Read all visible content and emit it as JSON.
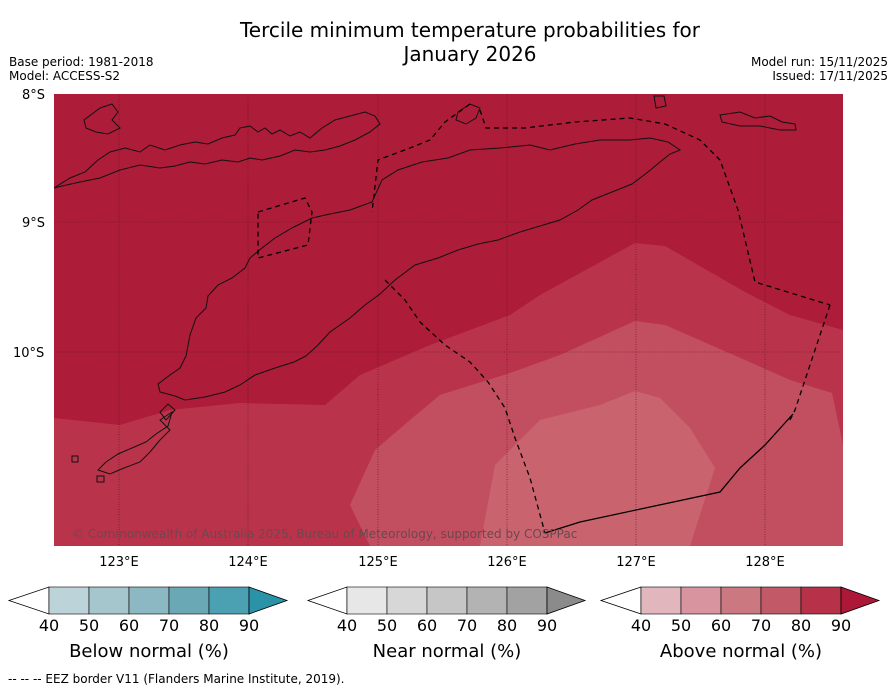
{
  "title_line1": "Tercile minimum temperature probabilities for",
  "title_line2": "January 2026",
  "base_period": "Base period: 1981-2018",
  "model": "Model: ACCESS-S2",
  "model_run": "Model run: 15/11/2025",
  "issued": "Issued: 17/11/2025",
  "map": {
    "lat_labels": [
      "8°S",
      "9°S",
      "10°S"
    ],
    "lon_labels": [
      "123°E",
      "124°E",
      "125°E",
      "126°E",
      "127°E",
      "128°E"
    ],
    "copyright": "© Commonwealth of Australia 2025, Bureau of Meteorology, supported by COSPPac"
  },
  "colorbars": [
    {
      "id": "below",
      "title": "Below normal (%)",
      "ticks": [
        "40",
        "50",
        "60",
        "70",
        "80",
        "90"
      ],
      "colors": [
        "#bdd3da",
        "#a5c6cc",
        "#8bb8c2",
        "#6aa8b6",
        "#4ba0b1",
        "#2a93a8"
      ]
    },
    {
      "id": "near",
      "title": "Near normal (%)",
      "ticks": [
        "40",
        "50",
        "60",
        "70",
        "80",
        "90"
      ],
      "colors": [
        "#e7e7e7",
        "#d7d7d7",
        "#c6c6c6",
        "#b3b3b3",
        "#a2a2a2",
        "#8b8b8b"
      ]
    },
    {
      "id": "above",
      "title": "Above normal (%)",
      "ticks": [
        "40",
        "50",
        "60",
        "70",
        "80",
        "90"
      ],
      "colors": [
        "#e2b6bd",
        "#d8959f",
        "#cc7880",
        "#c25967",
        "#b73249",
        "#ad1838"
      ]
    }
  ],
  "footnote": "-- -- -- EEZ border V11 (Flanders Marine Institute, 2019)."
}
